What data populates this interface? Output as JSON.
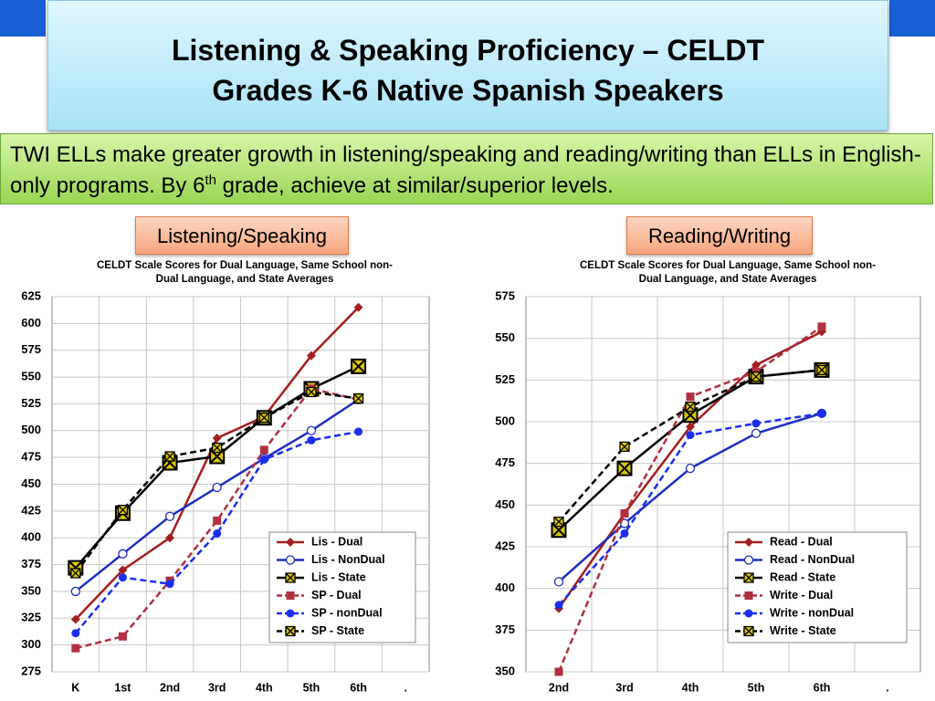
{
  "slide": {
    "title": [
      "Listening & Speaking Proficiency – CELDT",
      "Grades K-6  Native Spanish Speakers"
    ],
    "body": [
      "TWI ELLs make greater growth in listening/speaking and reading/writing than ELLs in English-only programs. By 6",
      "th",
      " grade, achieve at similar/superior levels."
    ],
    "tabs": [
      "Listening/Speaking",
      "Reading/Writing"
    ]
  },
  "chart_data": [
    {
      "type": "line",
      "title": [
        "CELDT Scale Scores for Dual Language, Same School non-",
        "Dual Language, and State Averages"
      ],
      "categories": [
        "K",
        "1st",
        "2nd",
        "3rd",
        "4th",
        "5th",
        "6th",
        "."
      ],
      "ylim": [
        275,
        625
      ],
      "yticks": [
        275,
        300,
        325,
        350,
        375,
        400,
        425,
        450,
        475,
        500,
        525,
        550,
        575,
        600,
        625
      ],
      "grid": true,
      "series": [
        {
          "name": "Lis - Dual",
          "color": "#a31f1f",
          "marker": "diamond",
          "dashed": false,
          "values": [
            324,
            370,
            400,
            493,
            513,
            570,
            615,
            null
          ]
        },
        {
          "name": "Lis - NonDual",
          "color": "#1f2fbf",
          "marker": "open-circle",
          "dashed": false,
          "values": [
            350,
            385,
            420,
            447,
            474,
            500,
            529,
            null
          ]
        },
        {
          "name": "Lis - State",
          "color": "#000000",
          "marker": "x-square",
          "dashed": false,
          "values": [
            372,
            423,
            470,
            476,
            512,
            539,
            560,
            null
          ]
        },
        {
          "name": "SP - Dual",
          "color": "#b03040",
          "marker": "square",
          "dashed": true,
          "values": [
            297,
            308,
            360,
            416,
            482,
            539,
            529,
            null
          ]
        },
        {
          "name": "SP - nonDual",
          "color": "#1a2ef0",
          "marker": "circle",
          "dashed": true,
          "values": [
            311,
            363,
            357,
            404,
            473,
            491,
            499,
            null
          ]
        },
        {
          "name": "SP - State",
          "color": "#000000",
          "marker": "x-square-small",
          "dashed": true,
          "values": [
            367,
            426,
            476,
            484,
            512,
            536,
            530,
            null
          ]
        }
      ]
    },
    {
      "type": "line",
      "title": [
        "CELDT Scale Scores for Dual Language, Same School non-",
        "Dual Language, and State Averages"
      ],
      "categories": [
        "2nd",
        "3rd",
        "4th",
        "5th",
        "6th",
        "."
      ],
      "ylim": [
        350,
        575
      ],
      "yticks": [
        350,
        375,
        400,
        425,
        450,
        475,
        500,
        525,
        550,
        575
      ],
      "grid": true,
      "series": [
        {
          "name": "Read - Dual",
          "color": "#a31f1f",
          "marker": "diamond",
          "dashed": false,
          "values": [
            388,
            445,
            497,
            534,
            554,
            null
          ]
        },
        {
          "name": "Read - NonDual",
          "color": "#1f2fbf",
          "marker": "open-circle",
          "dashed": false,
          "values": [
            404,
            439,
            472,
            493,
            505,
            null
          ]
        },
        {
          "name": "Read - State",
          "color": "#000000",
          "marker": "x-square",
          "dashed": false,
          "values": [
            435,
            472,
            504,
            527,
            531,
            null
          ]
        },
        {
          "name": "Write - Dual",
          "color": "#b03040",
          "marker": "square",
          "dashed": true,
          "values": [
            350,
            445,
            515,
            530,
            557,
            null
          ]
        },
        {
          "name": "Write - nonDual",
          "color": "#1a2ef0",
          "marker": "circle",
          "dashed": true,
          "values": [
            390,
            433,
            492,
            499,
            505,
            null
          ]
        },
        {
          "name": "Write - State",
          "color": "#000000",
          "marker": "x-square-small",
          "dashed": true,
          "values": [
            440,
            485,
            509,
            527,
            531,
            null
          ]
        }
      ]
    }
  ]
}
